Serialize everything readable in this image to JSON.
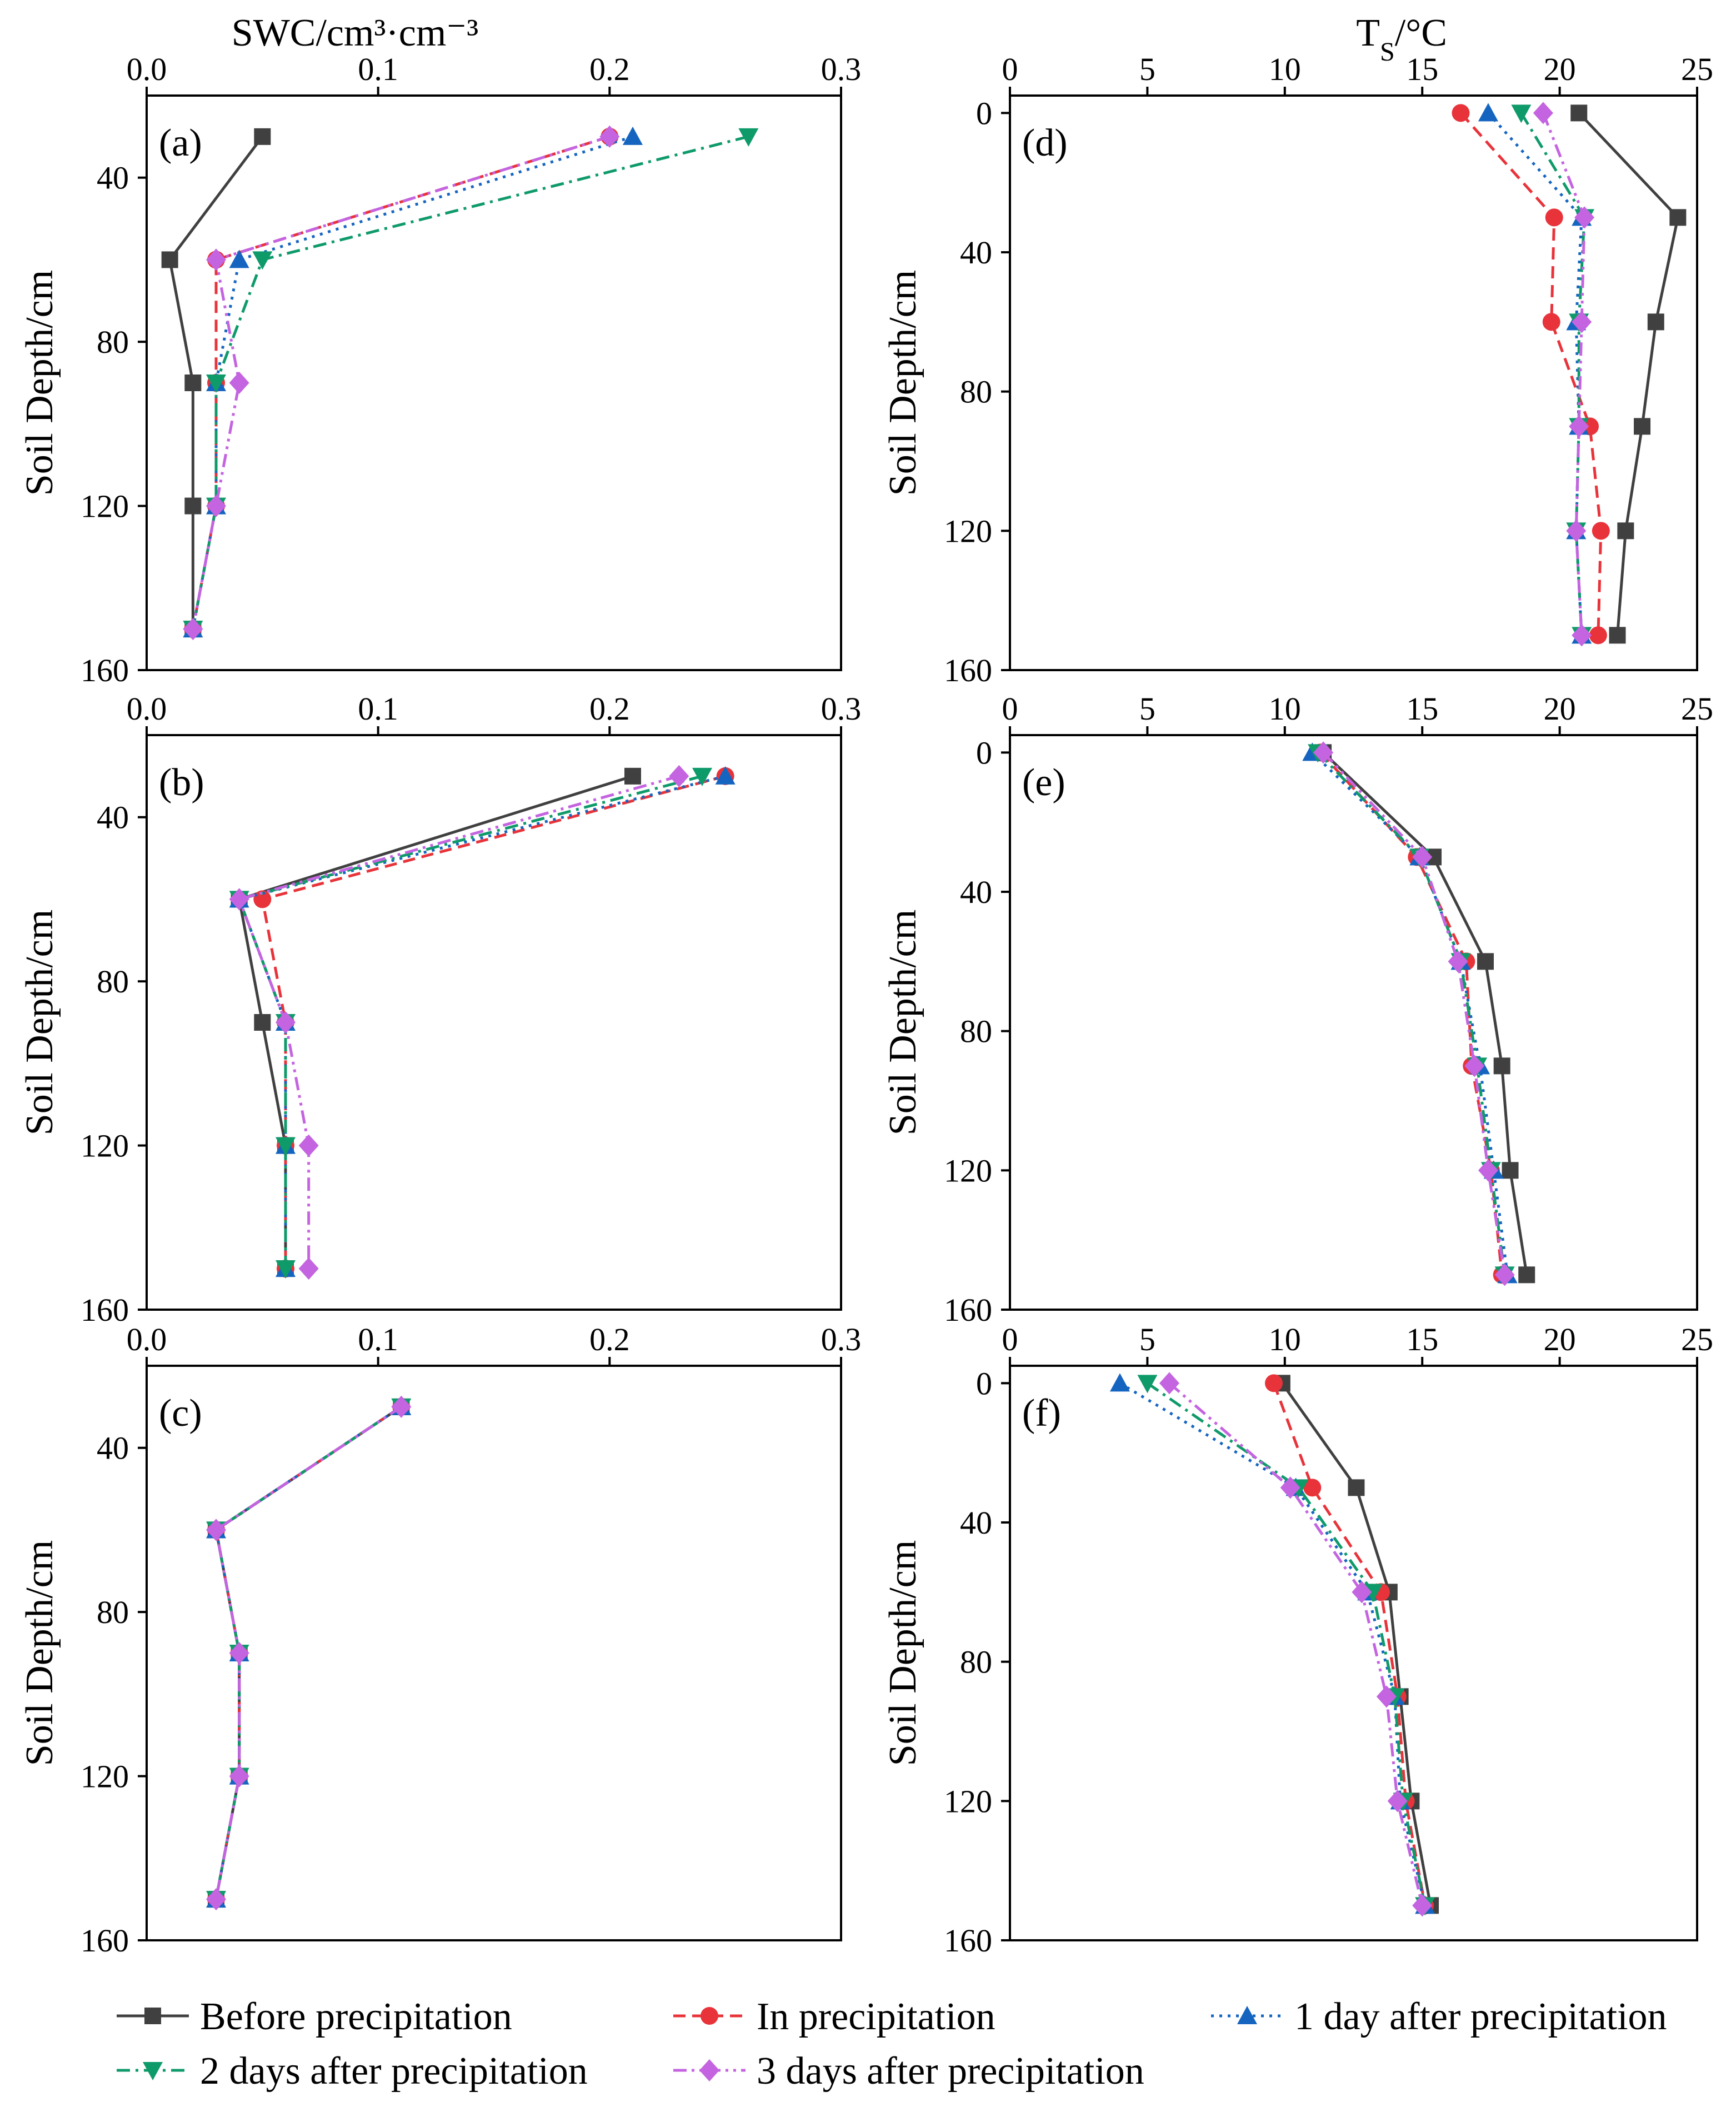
{
  "legend": {
    "entries": [
      {
        "name": "Before precipitation"
      },
      {
        "name": "In precipitation"
      },
      {
        "name": "1 day after precipitation"
      },
      {
        "name": "2 days after precipitation"
      },
      {
        "name": "3 days after precipitation"
      }
    ]
  },
  "series_styles": [
    {
      "color": "#404040",
      "marker": "square",
      "dash": "solid"
    },
    {
      "color": "#e8333a",
      "marker": "circle",
      "dash": "dash"
    },
    {
      "color": "#1565c0",
      "marker": "triangle-up",
      "dash": "dot"
    },
    {
      "color": "#0f9a6a",
      "marker": "triangle-down",
      "dash": "dashdot"
    },
    {
      "color": "#c464e0",
      "marker": "diamond",
      "dash": "dashdotdot"
    }
  ],
  "chart_data": [
    {
      "type": "line",
      "panel": "(a)",
      "xlabel": "SWC/cm³·cm⁻³",
      "ylabel": "Soil Depth/cm",
      "xlim": [
        0,
        0.3
      ],
      "ylim": [
        20,
        160
      ],
      "x_ticks": [
        "0.0",
        "0.1",
        "0.2",
        "0.3"
      ],
      "y_ticks": [
        "40",
        "80",
        "120",
        "160"
      ],
      "depths": [
        30,
        60,
        90,
        120,
        150
      ],
      "series": [
        {
          "name": "Before precipitation",
          "values": [
            0.05,
            0.01,
            0.02,
            0.02,
            0.02
          ]
        },
        {
          "name": "In precipitation",
          "values": [
            0.2,
            0.03,
            0.03,
            0.03,
            0.02
          ]
        },
        {
          "name": "1 day after precipitation",
          "values": [
            0.21,
            0.04,
            0.03,
            0.03,
            0.02
          ]
        },
        {
          "name": "2 days after precipitation",
          "values": [
            0.26,
            0.05,
            0.03,
            0.03,
            0.02
          ]
        },
        {
          "name": "3 days after precipitation",
          "values": [
            0.2,
            0.03,
            0.04,
            0.03,
            0.02
          ]
        }
      ]
    },
    {
      "type": "line",
      "panel": "(b)",
      "xlabel": "",
      "ylabel": "Soil Depth/cm",
      "xlim": [
        0,
        0.3
      ],
      "ylim": [
        20,
        160
      ],
      "x_ticks": [
        "0.0",
        "0.1",
        "0.2",
        "0.3"
      ],
      "y_ticks": [
        "40",
        "80",
        "120",
        "160"
      ],
      "depths": [
        30,
        60,
        90,
        120,
        150
      ],
      "series": [
        {
          "name": "Before precipitation",
          "values": [
            0.21,
            0.04,
            0.05,
            0.06,
            0.06
          ]
        },
        {
          "name": "In precipitation",
          "values": [
            0.25,
            0.05,
            0.06,
            0.06,
            0.06
          ]
        },
        {
          "name": "1 day after precipitation",
          "values": [
            0.25,
            0.04,
            0.06,
            0.06,
            0.06
          ]
        },
        {
          "name": "2 days after precipitation",
          "values": [
            0.24,
            0.04,
            0.06,
            0.06,
            0.06
          ]
        },
        {
          "name": "3 days after precipitation",
          "values": [
            0.23,
            0.04,
            0.06,
            0.07,
            0.07
          ]
        }
      ]
    },
    {
      "type": "line",
      "panel": "(c)",
      "xlabel": "",
      "ylabel": "Soil Depth/cm",
      "xlim": [
        0,
        0.3
      ],
      "ylim": [
        20,
        160
      ],
      "x_ticks": [
        "0.0",
        "0.1",
        "0.2",
        "0.3"
      ],
      "y_ticks": [
        "40",
        "80",
        "120",
        "160"
      ],
      "depths": [
        30,
        60,
        90,
        120,
        150
      ],
      "series": [
        {
          "name": "Before precipitation",
          "values": [
            0.11,
            0.03,
            0.04,
            0.04,
            0.03
          ]
        },
        {
          "name": "In precipitation",
          "values": [
            0.11,
            0.03,
            0.04,
            0.04,
            0.03
          ]
        },
        {
          "name": "1 day after precipitation",
          "values": [
            0.11,
            0.03,
            0.04,
            0.04,
            0.03
          ]
        },
        {
          "name": "2 days after precipitation",
          "values": [
            0.11,
            0.03,
            0.04,
            0.04,
            0.03
          ]
        },
        {
          "name": "3 days after precipitation",
          "values": [
            0.11,
            0.03,
            0.04,
            0.04,
            0.03
          ]
        }
      ]
    },
    {
      "type": "line",
      "panel": "(d)",
      "xlabel": "TS/°C",
      "ylabel": "Soil Depth/cm",
      "xlim": [
        0,
        25
      ],
      "ylim": [
        -5,
        160
      ],
      "x_ticks": [
        "0",
        "5",
        "10",
        "15",
        "20",
        "25"
      ],
      "y_ticks": [
        "0",
        "40",
        "80",
        "120",
        "160"
      ],
      "depths": [
        0,
        30,
        60,
        90,
        120,
        150
      ],
      "series": [
        {
          "name": "Before precipitation",
          "values": [
            20.7,
            24.3,
            23.5,
            23.0,
            22.4,
            22.1
          ]
        },
        {
          "name": "In precipitation",
          "values": [
            16.4,
            19.8,
            19.7,
            21.1,
            21.5,
            21.4
          ]
        },
        {
          "name": "1 day after precipitation",
          "values": [
            17.4,
            20.8,
            20.6,
            20.7,
            20.6,
            20.8
          ]
        },
        {
          "name": "2 days after precipitation",
          "values": [
            18.6,
            20.9,
            20.7,
            20.7,
            20.6,
            20.8
          ]
        },
        {
          "name": "3 days after precipitation",
          "values": [
            19.4,
            20.9,
            20.8,
            20.7,
            20.6,
            20.8
          ]
        }
      ]
    },
    {
      "type": "line",
      "panel": "(e)",
      "xlabel": "",
      "ylabel": "Soil Depth/cm",
      "xlim": [
        0,
        25
      ],
      "ylim": [
        -5,
        160
      ],
      "x_ticks": [
        "0",
        "5",
        "10",
        "15",
        "20",
        "25"
      ],
      "y_ticks": [
        "0",
        "40",
        "80",
        "120",
        "160"
      ],
      "depths": [
        0,
        30,
        60,
        90,
        120,
        150
      ],
      "series": [
        {
          "name": "Before precipitation",
          "values": [
            11.4,
            15.4,
            17.3,
            17.9,
            18.2,
            18.8
          ]
        },
        {
          "name": "In precipitation",
          "values": [
            11.3,
            14.8,
            16.6,
            16.8,
            17.5,
            17.9
          ]
        },
        {
          "name": "1 day after precipitation",
          "values": [
            11.0,
            14.9,
            16.4,
            17.1,
            17.6,
            18.1
          ]
        },
        {
          "name": "2 days after precipitation",
          "values": [
            11.2,
            14.9,
            16.4,
            17.0,
            17.5,
            18.0
          ]
        },
        {
          "name": "3 days after precipitation",
          "values": [
            11.4,
            15.0,
            16.3,
            16.9,
            17.4,
            18.0
          ]
        }
      ]
    },
    {
      "type": "line",
      "panel": "(f)",
      "xlabel": "",
      "ylabel": "Soil Depth/cm",
      "xlim": [
        0,
        25
      ],
      "ylim": [
        -5,
        160
      ],
      "x_ticks": [
        "0",
        "5",
        "10",
        "15",
        "20",
        "25"
      ],
      "y_ticks": [
        "0",
        "40",
        "80",
        "120",
        "160"
      ],
      "depths": [
        0,
        30,
        60,
        90,
        120,
        150
      ],
      "series": [
        {
          "name": "Before precipitation",
          "values": [
            9.9,
            12.6,
            13.8,
            14.2,
            14.6,
            15.3
          ]
        },
        {
          "name": "In precipitation",
          "values": [
            9.6,
            11.0,
            13.5,
            14.1,
            14.4,
            15.1
          ]
        },
        {
          "name": "1 day after precipitation",
          "values": [
            4.0,
            10.4,
            13.0,
            14.0,
            14.2,
            15.1
          ]
        },
        {
          "name": "2 days after precipitation",
          "values": [
            5.0,
            10.5,
            13.2,
            14.0,
            14.3,
            15.1
          ]
        },
        {
          "name": "3 days after precipitation",
          "values": [
            5.8,
            10.2,
            12.8,
            13.7,
            14.1,
            15.0
          ]
        }
      ]
    }
  ]
}
